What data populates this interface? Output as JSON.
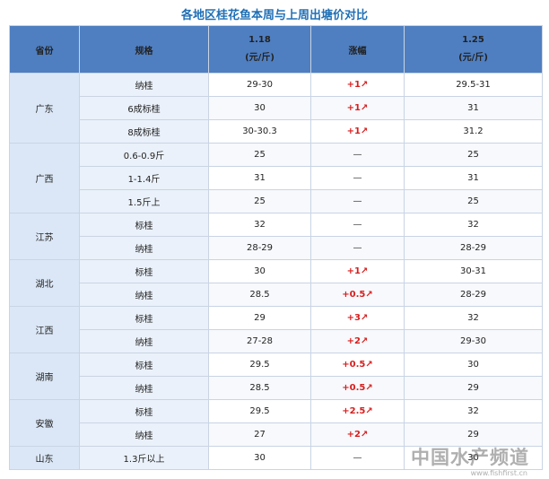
{
  "title": "各地区桂花鱼本周与上周出塘价对比",
  "headers": {
    "province": "省份",
    "spec": "规格",
    "old_date": "1.18",
    "old_unit": "(元/斤)",
    "change": "涨幅",
    "new_date": "1.25",
    "new_unit": "(元/斤)"
  },
  "groups": [
    {
      "province": "广东",
      "rows": [
        {
          "spec": "纳桂",
          "old": "29-30",
          "change": "+1↗",
          "up": true,
          "new": "29.5-31"
        },
        {
          "spec": "6成标桂",
          "old": "30",
          "change": "+1↗",
          "up": true,
          "new": "31"
        },
        {
          "spec": "8成标桂",
          "old": "30-30.3",
          "change": "+1↗",
          "up": true,
          "new": "31.2"
        }
      ]
    },
    {
      "province": "广西",
      "rows": [
        {
          "spec": "0.6-0.9斤",
          "old": "25",
          "change": "—",
          "up": false,
          "new": "25"
        },
        {
          "spec": "1-1.4斤",
          "old": "31",
          "change": "—",
          "up": false,
          "new": "31"
        },
        {
          "spec": "1.5斤上",
          "old": "25",
          "change": "—",
          "up": false,
          "new": "25"
        }
      ]
    },
    {
      "province": "江苏",
      "rows": [
        {
          "spec": "标桂",
          "old": "32",
          "change": "—",
          "up": false,
          "new": "32"
        },
        {
          "spec": "纳桂",
          "old": "28-29",
          "change": "—",
          "up": false,
          "new": "28-29"
        }
      ]
    },
    {
      "province": "湖北",
      "rows": [
        {
          "spec": "标桂",
          "old": "30",
          "change": "+1↗",
          "up": true,
          "new": "30-31"
        },
        {
          "spec": "纳桂",
          "old": "28.5",
          "change": "+0.5↗",
          "up": true,
          "new": "28-29"
        }
      ]
    },
    {
      "province": "江西",
      "rows": [
        {
          "spec": "标桂",
          "old": "29",
          "change": "+3↗",
          "up": true,
          "new": "32"
        },
        {
          "spec": "纳桂",
          "old": "27-28",
          "change": "+2↗",
          "up": true,
          "new": "29-30"
        }
      ]
    },
    {
      "province": "湖南",
      "rows": [
        {
          "spec": "标桂",
          "old": "29.5",
          "change": "+0.5↗",
          "up": true,
          "new": "30"
        },
        {
          "spec": "纳桂",
          "old": "28.5",
          "change": "+0.5↗",
          "up": true,
          "new": "29"
        }
      ]
    },
    {
      "province": "安徽",
      "rows": [
        {
          "spec": "标桂",
          "old": "29.5",
          "change": "+2.5↗",
          "up": true,
          "new": "32"
        },
        {
          "spec": "纳桂",
          "old": "27",
          "change": "+2↗",
          "up": true,
          "new": "29"
        }
      ]
    },
    {
      "province": "山东",
      "rows": [
        {
          "spec": "1.3斤以上",
          "old": "30",
          "change": "—",
          "up": false,
          "new": "30"
        }
      ]
    }
  ],
  "watermark": {
    "text": "中国水产频道",
    "url": "www.fishfirst.cn"
  },
  "colors": {
    "header_bg": "#4f7fc1",
    "title": "#1f6fb5",
    "up": "#d81e1e"
  }
}
